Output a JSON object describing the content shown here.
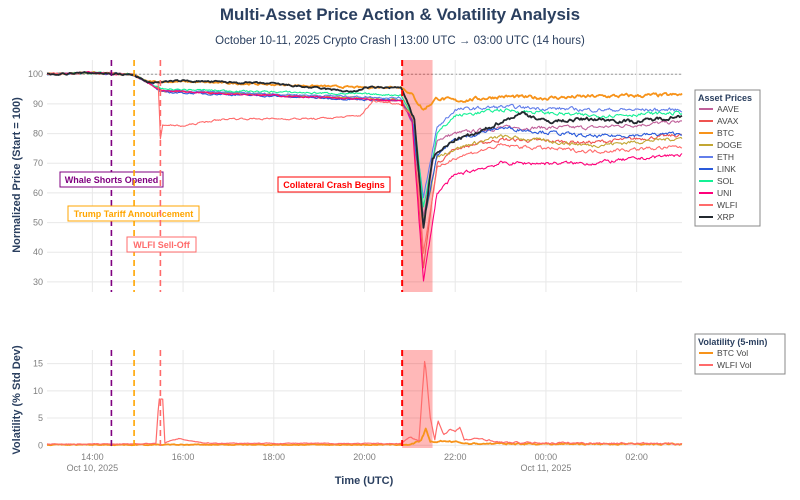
{
  "title": "Multi-Asset Price Action & Volatility Analysis",
  "subtitle": "October 10-11, 2025 Crypto Crash | 13:00 UTC → 03:00 UTC (14 hours)",
  "chart_data": [
    {
      "type": "line",
      "name": "price",
      "ylabel": "Normalized Price (Start = 100)",
      "ylim": [
        26.6,
        104.8
      ],
      "yticks": [
        30,
        40,
        50,
        60,
        70,
        80,
        90,
        100
      ],
      "x_unit": "hours since Oct 10, 2025 13:00 UTC",
      "xlim": [
        0,
        14
      ],
      "reference_line": 100,
      "legend_title": "Asset Prices",
      "legend_position": "right",
      "shared_prefix": [
        [
          0,
          100
        ],
        [
          1,
          100.5
        ],
        [
          1.9,
          99.8
        ],
        [
          2.2,
          97.5
        ]
      ],
      "series": [
        {
          "name": "AAVE",
          "color": "#c0609a",
          "points": [
            [
              2.5,
              94.5
            ],
            [
              7.8,
              91
            ],
            [
              8.05,
              86
            ],
            [
              8.3,
              52
            ],
            [
              8.6,
              78
            ],
            [
              9,
              80
            ],
            [
              10,
              82
            ],
            [
              12,
              82
            ],
            [
              14,
              84
            ]
          ]
        },
        {
          "name": "AVAX",
          "color": "#ef5350",
          "points": [
            [
              2.5,
              94.5
            ],
            [
              7.8,
              91
            ],
            [
              8.05,
              85
            ],
            [
              8.3,
              35
            ],
            [
              8.6,
              70
            ],
            [
              9,
              75
            ],
            [
              10,
              78
            ],
            [
              12,
              77
            ],
            [
              14,
              79.5
            ]
          ]
        },
        {
          "name": "BTC",
          "color": "#f7931a",
          "points": [
            [
              2.3,
              97.5
            ],
            [
              3,
              97.5
            ],
            [
              5,
              96.5
            ],
            [
              7,
              95.5
            ],
            [
              7.8,
              95.8
            ],
            [
              8.05,
              93
            ],
            [
              8.3,
              88
            ],
            [
              8.6,
              92
            ],
            [
              9,
              91
            ],
            [
              10,
              92.5
            ],
            [
              11,
              92
            ],
            [
              12,
              92.5
            ],
            [
              14,
              93
            ]
          ]
        },
        {
          "name": "DOGE",
          "color": "#c2a633",
          "points": [
            [
              2.5,
              94.5
            ],
            [
              7.8,
              91.5
            ],
            [
              8.05,
              86
            ],
            [
              8.3,
              50
            ],
            [
              8.6,
              72
            ],
            [
              9,
              75
            ],
            [
              10,
              79
            ],
            [
              12,
              76
            ],
            [
              14,
              78.5
            ]
          ]
        },
        {
          "name": "ETH",
          "color": "#627eea",
          "points": [
            [
              2.5,
              94.5
            ],
            [
              7.8,
              92
            ],
            [
              8.1,
              82
            ],
            [
              8.3,
              58
            ],
            [
              8.6,
              82
            ],
            [
              9,
              88
            ],
            [
              10,
              89
            ],
            [
              12,
              88
            ],
            [
              14,
              88
            ]
          ]
        },
        {
          "name": "LINK",
          "color": "#2a5ada",
          "points": [
            [
              2.5,
              94
            ],
            [
              7.8,
              91
            ],
            [
              8.05,
              85
            ],
            [
              8.3,
              50
            ],
            [
              8.6,
              73
            ],
            [
              9,
              78
            ],
            [
              10,
              82
            ],
            [
              12,
              79
            ],
            [
              14,
              80
            ]
          ]
        },
        {
          "name": "SOL",
          "color": "#14f195",
          "points": [
            [
              2.5,
              95
            ],
            [
              7.8,
              93
            ],
            [
              8.1,
              85
            ],
            [
              8.3,
              55
            ],
            [
              8.6,
              80
            ],
            [
              9,
              86
            ],
            [
              10,
              88
            ],
            [
              11,
              87
            ],
            [
              12,
              86
            ],
            [
              14,
              87
            ]
          ]
        },
        {
          "name": "UNI",
          "color": "#ff007a",
          "points": [
            [
              2.5,
              94.5
            ],
            [
              7.8,
              91
            ],
            [
              8.05,
              84
            ],
            [
              8.3,
              30
            ],
            [
              8.6,
              60
            ],
            [
              9,
              66
            ],
            [
              10,
              70
            ],
            [
              12,
              70
            ],
            [
              14,
              73
            ]
          ]
        },
        {
          "name": "WLFI",
          "color": "#ff6b6b",
          "points": [
            [
              2.45,
              97
            ],
            [
              2.5,
              78
            ],
            [
              2.55,
              83
            ],
            [
              3,
              82.5
            ],
            [
              3.5,
              84
            ],
            [
              4,
              85
            ],
            [
              6,
              85
            ],
            [
              6.9,
              86
            ],
            [
              7.2,
              91
            ],
            [
              7.8,
              90
            ],
            [
              8.1,
              85
            ],
            [
              8.3,
              40
            ],
            [
              8.6,
              68
            ],
            [
              9,
              72
            ],
            [
              10,
              76
            ],
            [
              12,
              74
            ],
            [
              14,
              75.5
            ]
          ]
        },
        {
          "name": "XRP",
          "color": "#23292f",
          "points": [
            [
              2.3,
              97.2
            ],
            [
              3,
              97.8
            ],
            [
              5,
              96.8
            ],
            [
              6.8,
              94
            ],
            [
              7,
              95.5
            ],
            [
              7.8,
              95.5
            ],
            [
              8.1,
              85
            ],
            [
              8.3,
              48
            ],
            [
              8.5,
              72
            ],
            [
              9,
              78
            ],
            [
              9.5,
              80
            ],
            [
              10,
              84
            ],
            [
              10.5,
              87
            ],
            [
              11,
              84
            ],
            [
              12,
              85
            ],
            [
              13,
              84
            ],
            [
              14,
              86
            ]
          ]
        }
      ]
    },
    {
      "type": "line",
      "name": "volatility",
      "xlabel": "Time (UTC)",
      "ylabel": "Volatility (% Std Dev)",
      "ylim": [
        -0.5,
        17.5
      ],
      "yticks": [
        0,
        5,
        10,
        15
      ],
      "xlim": [
        0,
        14
      ],
      "xticks": [
        {
          "h": 1,
          "label": "14:00",
          "sub": "Oct 10, 2025"
        },
        {
          "h": 3,
          "label": "16:00"
        },
        {
          "h": 5,
          "label": "18:00"
        },
        {
          "h": 7,
          "label": "20:00"
        },
        {
          "h": 9,
          "label": "22:00"
        },
        {
          "h": 11,
          "label": "00:00",
          "sub": "Oct 11, 2025"
        },
        {
          "h": 13,
          "label": "02:00"
        }
      ],
      "legend_title": "Volatility (5-min)",
      "legend_position": "right",
      "series": [
        {
          "name": "BTC Vol",
          "color": "#f7931a",
          "points": [
            [
              0,
              0.1
            ],
            [
              8,
              0.1
            ],
            [
              8.25,
              0.8
            ],
            [
              8.35,
              3
            ],
            [
              8.45,
              0.5
            ],
            [
              8.7,
              0.8
            ],
            [
              9,
              0.6
            ],
            [
              9.3,
              0.3
            ],
            [
              14,
              0.2
            ]
          ]
        },
        {
          "name": "WLFI Vol",
          "color": "#ff6b6b",
          "points": [
            [
              0,
              0.2
            ],
            [
              2.4,
              0.3
            ],
            [
              2.47,
              8.5
            ],
            [
              2.55,
              8.5
            ],
            [
              2.6,
              0.5
            ],
            [
              2.9,
              1.2
            ],
            [
              3.5,
              0.4
            ],
            [
              7.8,
              0.3
            ],
            [
              8.0,
              1.5
            ],
            [
              8.2,
              0.8
            ],
            [
              8.33,
              16
            ],
            [
              8.45,
              5
            ],
            [
              8.55,
              1
            ],
            [
              8.62,
              4.5
            ],
            [
              8.75,
              2
            ],
            [
              8.9,
              3
            ],
            [
              9.0,
              2.5
            ],
            [
              9.1,
              3.2
            ],
            [
              9.2,
              1
            ],
            [
              9.6,
              1.2
            ],
            [
              10,
              0.5
            ],
            [
              14,
              0.3
            ]
          ]
        }
      ]
    }
  ],
  "events": [
    {
      "label": "Whale Shorts Opened",
      "h": 1.42,
      "color": "#800080"
    },
    {
      "label": "Trump Tariff Announcement",
      "h": 1.92,
      "color": "#ffa500"
    },
    {
      "label": "WLFI Sell-Off",
      "h": 2.5,
      "color": "#ff6b6b"
    },
    {
      "label": "Collateral Crash Begins",
      "h": 7.83,
      "color": "#ff0000"
    }
  ],
  "crash_window": [
    7.83,
    8.5
  ]
}
